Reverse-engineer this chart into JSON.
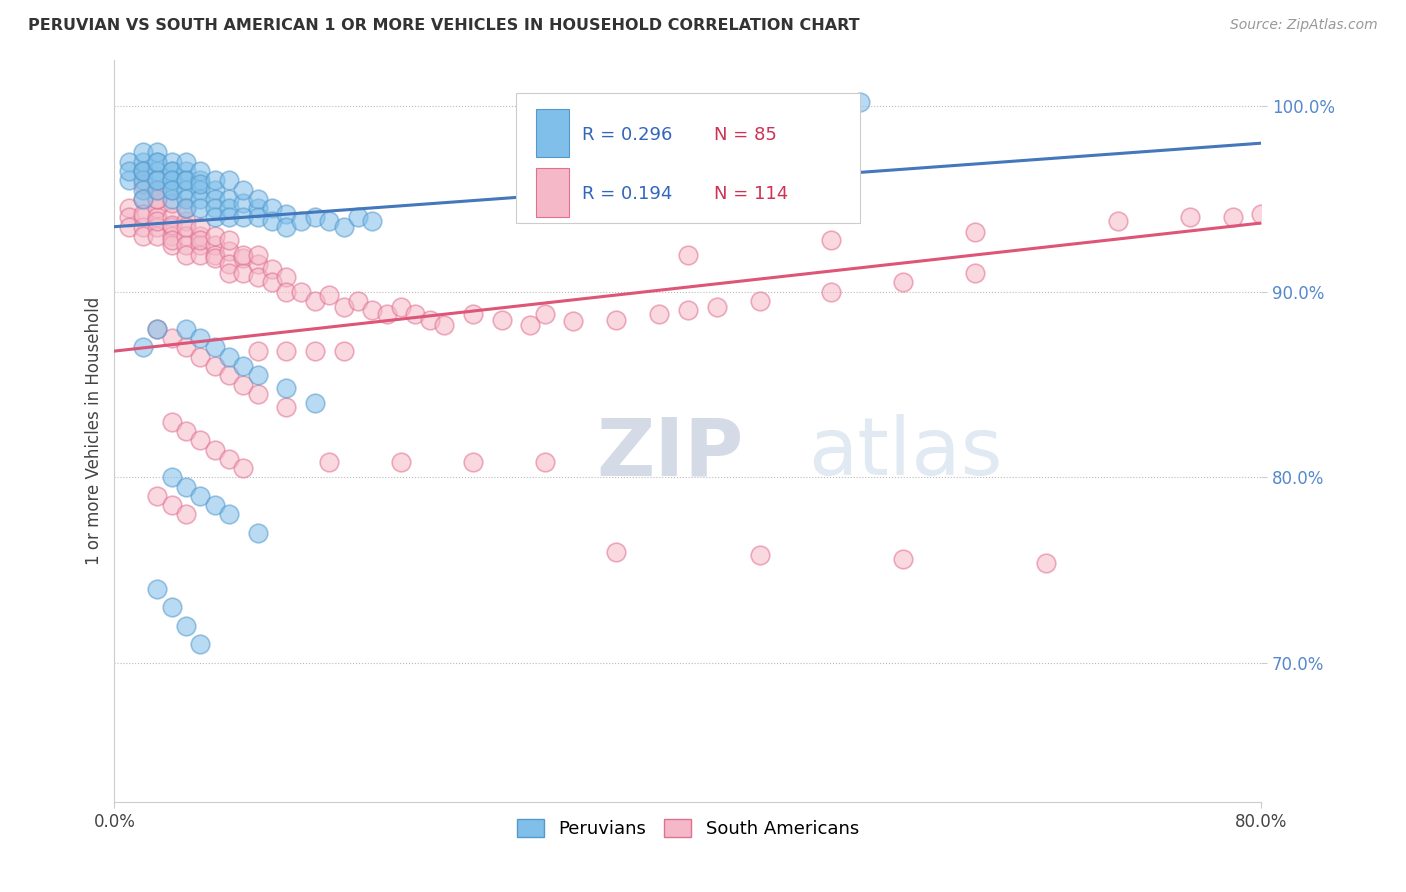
{
  "title": "PERUVIAN VS SOUTH AMERICAN 1 OR MORE VEHICLES IN HOUSEHOLD CORRELATION CHART",
  "source": "Source: ZipAtlas.com",
  "ylabel": "1 or more Vehicles in Household",
  "xmin": 0.0,
  "xmax": 0.8,
  "ymin": 0.625,
  "ymax": 1.025,
  "peruvian_color": "#7fbfea",
  "peruvian_edge_color": "#5599cc",
  "south_american_color": "#f5b8c8",
  "south_american_edge_color": "#e07090",
  "peruvian_line_color": "#4477bb",
  "south_american_line_color": "#dd5577",
  "R_peruvian": 0.296,
  "N_peruvian": 85,
  "R_south_american": 0.194,
  "N_south_american": 114,
  "peru_trend_x0": 0.0,
  "peru_trend_y0": 0.935,
  "peru_trend_x1": 0.8,
  "peru_trend_y1": 0.98,
  "sa_trend_x0": 0.0,
  "sa_trend_y0": 0.868,
  "sa_trend_x1": 0.8,
  "sa_trend_y1": 0.937,
  "peru_x": [
    0.01,
    0.01,
    0.01,
    0.02,
    0.02,
    0.02,
    0.02,
    0.02,
    0.02,
    0.02,
    0.03,
    0.03,
    0.03,
    0.03,
    0.03,
    0.03,
    0.03,
    0.04,
    0.04,
    0.04,
    0.04,
    0.04,
    0.04,
    0.04,
    0.04,
    0.05,
    0.05,
    0.05,
    0.05,
    0.05,
    0.05,
    0.05,
    0.06,
    0.06,
    0.06,
    0.06,
    0.06,
    0.06,
    0.07,
    0.07,
    0.07,
    0.07,
    0.07,
    0.08,
    0.08,
    0.08,
    0.08,
    0.09,
    0.09,
    0.09,
    0.1,
    0.1,
    0.1,
    0.11,
    0.11,
    0.12,
    0.12,
    0.13,
    0.14,
    0.15,
    0.16,
    0.17,
    0.18,
    0.05,
    0.06,
    0.07,
    0.08,
    0.09,
    0.1,
    0.12,
    0.14,
    0.04,
    0.05,
    0.06,
    0.07,
    0.08,
    0.1,
    0.03,
    0.04,
    0.05,
    0.06,
    0.52,
    0.02,
    0.03
  ],
  "peru_y": [
    0.97,
    0.96,
    0.965,
    0.965,
    0.97,
    0.96,
    0.955,
    0.975,
    0.965,
    0.95,
    0.97,
    0.965,
    0.96,
    0.955,
    0.975,
    0.96,
    0.97,
    0.965,
    0.96,
    0.955,
    0.95,
    0.97,
    0.965,
    0.96,
    0.955,
    0.965,
    0.96,
    0.955,
    0.95,
    0.945,
    0.96,
    0.97,
    0.96,
    0.955,
    0.95,
    0.945,
    0.965,
    0.958,
    0.955,
    0.95,
    0.945,
    0.96,
    0.94,
    0.95,
    0.945,
    0.96,
    0.94,
    0.948,
    0.94,
    0.955,
    0.945,
    0.95,
    0.94,
    0.945,
    0.938,
    0.942,
    0.935,
    0.938,
    0.94,
    0.938,
    0.935,
    0.94,
    0.938,
    0.88,
    0.875,
    0.87,
    0.865,
    0.86,
    0.855,
    0.848,
    0.84,
    0.8,
    0.795,
    0.79,
    0.785,
    0.78,
    0.77,
    0.74,
    0.73,
    0.72,
    0.71,
    1.002,
    0.87,
    0.88
  ],
  "sa_x": [
    0.01,
    0.01,
    0.01,
    0.02,
    0.02,
    0.02,
    0.02,
    0.02,
    0.03,
    0.03,
    0.03,
    0.03,
    0.03,
    0.03,
    0.04,
    0.04,
    0.04,
    0.04,
    0.04,
    0.04,
    0.04,
    0.05,
    0.05,
    0.05,
    0.05,
    0.05,
    0.05,
    0.06,
    0.06,
    0.06,
    0.06,
    0.06,
    0.07,
    0.07,
    0.07,
    0.07,
    0.08,
    0.08,
    0.08,
    0.08,
    0.09,
    0.09,
    0.09,
    0.1,
    0.1,
    0.1,
    0.11,
    0.11,
    0.12,
    0.12,
    0.13,
    0.14,
    0.15,
    0.16,
    0.17,
    0.18,
    0.19,
    0.2,
    0.21,
    0.22,
    0.23,
    0.25,
    0.27,
    0.29,
    0.3,
    0.32,
    0.35,
    0.38,
    0.4,
    0.42,
    0.45,
    0.5,
    0.55,
    0.6,
    0.03,
    0.04,
    0.05,
    0.06,
    0.07,
    0.08,
    0.09,
    0.1,
    0.12,
    0.04,
    0.05,
    0.06,
    0.07,
    0.08,
    0.09,
    0.03,
    0.04,
    0.05,
    0.15,
    0.2,
    0.25,
    0.3,
    0.02,
    0.02,
    0.03,
    0.03,
    0.4,
    0.5,
    0.6,
    0.7,
    0.75,
    0.78,
    0.8,
    0.35,
    0.45,
    0.55,
    0.65,
    0.1,
    0.12,
    0.14,
    0.16
  ],
  "sa_y": [
    0.945,
    0.94,
    0.935,
    0.95,
    0.94,
    0.935,
    0.93,
    0.942,
    0.945,
    0.94,
    0.935,
    0.93,
    0.95,
    0.938,
    0.94,
    0.935,
    0.93,
    0.925,
    0.948,
    0.936,
    0.928,
    0.938,
    0.93,
    0.925,
    0.92,
    0.935,
    0.945,
    0.93,
    0.925,
    0.92,
    0.935,
    0.928,
    0.925,
    0.92,
    0.93,
    0.918,
    0.922,
    0.915,
    0.928,
    0.91,
    0.918,
    0.91,
    0.92,
    0.915,
    0.908,
    0.92,
    0.912,
    0.905,
    0.908,
    0.9,
    0.9,
    0.895,
    0.898,
    0.892,
    0.895,
    0.89,
    0.888,
    0.892,
    0.888,
    0.885,
    0.882,
    0.888,
    0.885,
    0.882,
    0.888,
    0.884,
    0.885,
    0.888,
    0.89,
    0.892,
    0.895,
    0.9,
    0.905,
    0.91,
    0.88,
    0.875,
    0.87,
    0.865,
    0.86,
    0.855,
    0.85,
    0.845,
    0.838,
    0.83,
    0.825,
    0.82,
    0.815,
    0.81,
    0.805,
    0.79,
    0.785,
    0.78,
    0.808,
    0.808,
    0.808,
    0.808,
    0.965,
    0.958,
    0.955,
    0.95,
    0.92,
    0.928,
    0.932,
    0.938,
    0.94,
    0.94,
    0.942,
    0.76,
    0.758,
    0.756,
    0.754,
    0.868,
    0.868,
    0.868,
    0.868
  ]
}
